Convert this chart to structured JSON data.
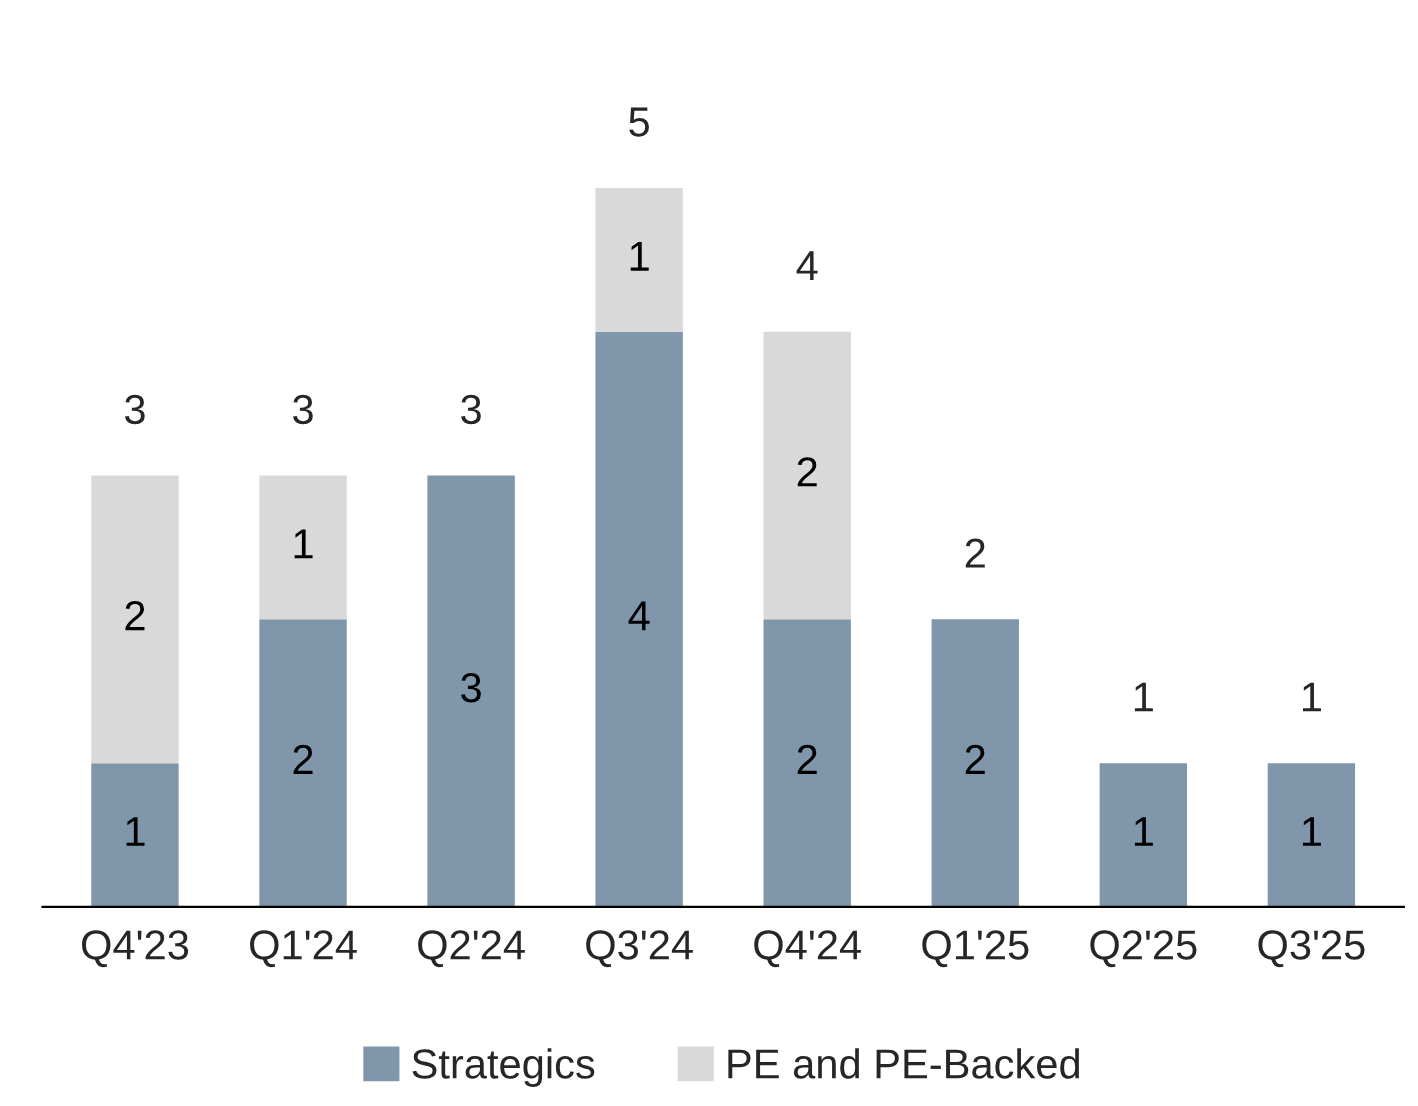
{
  "chart_data": {
    "type": "bar",
    "stacked": true,
    "data_labels": true,
    "legend": "bottom",
    "grid": false,
    "categories": [
      "Q4'23",
      "Q1'24",
      "Q2'24",
      "Q3'24",
      "Q4'24",
      "Q1'25",
      "Q2'25",
      "Q3'25"
    ],
    "series": [
      {
        "name": "Strategics",
        "color": "#7f96ab",
        "values": [
          1,
          2,
          3,
          4,
          2,
          2,
          1,
          1
        ]
      },
      {
        "name": "PE and PE-Backed",
        "color": "#d9d9d9",
        "values": [
          2,
          1,
          null,
          1,
          2,
          null,
          null,
          null
        ]
      }
    ],
    "totals": [
      "3",
      "3",
      "3",
      "5",
      "4",
      "2",
      "1",
      "1"
    ]
  }
}
